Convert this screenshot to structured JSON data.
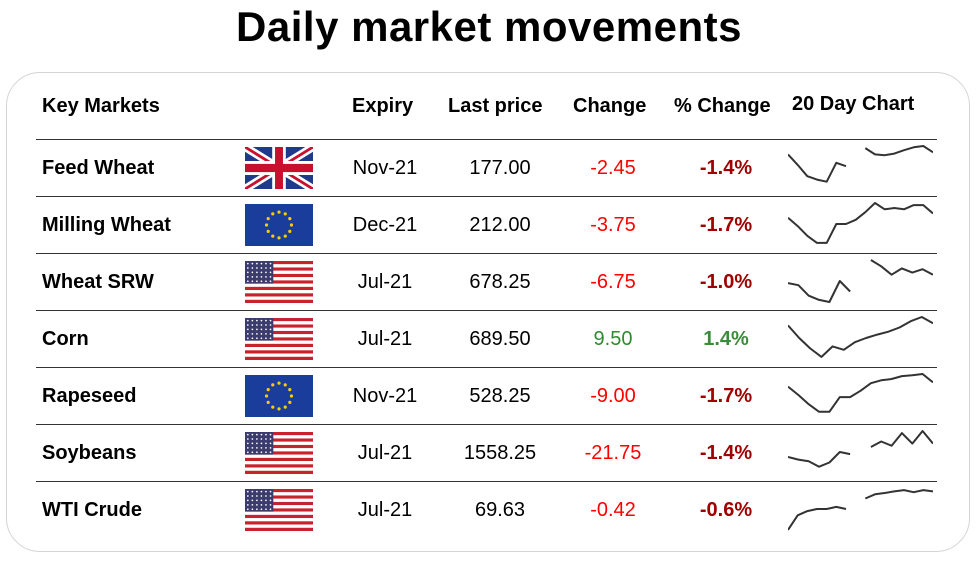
{
  "title": "Daily market movements",
  "headers": {
    "market": "Key Markets",
    "expiry": "Expiry",
    "last_price": "Last price",
    "change": "Change",
    "pct_change": "% Change",
    "chart": "20 Day Chart"
  },
  "colors": {
    "negative_change": "#ff0000",
    "positive_change": "#2e8b2e",
    "negative_pct": "#a00000",
    "positive_pct": "#3c8a3c"
  },
  "rows": [
    {
      "market": "Feed Wheat",
      "flag": "uk-flag-icon",
      "expiry": "Nov-21",
      "last_price": "177.00",
      "change": "-2.45",
      "pct_change": "-1.4%",
      "direction": "down",
      "chart": [
        0.2,
        0.45,
        0.72,
        0.8,
        0.85,
        0.4,
        0.48,
        null,
        0.05,
        0.2,
        0.22,
        0.18,
        0.1,
        0.03,
        0.0,
        0.15
      ]
    },
    {
      "market": "Milling Wheat",
      "flag": "eu-flag-icon",
      "expiry": "Dec-21",
      "last_price": "212.00",
      "change": "-3.75",
      "pct_change": "-1.7%",
      "direction": "down",
      "chart": [
        0.35,
        0.55,
        0.78,
        0.95,
        0.95,
        0.5,
        0.5,
        0.4,
        0.22,
        0.0,
        0.15,
        0.12,
        0.15,
        0.05,
        0.05,
        0.25
      ]
    },
    {
      "market": "Wheat SRW",
      "flag": "us-flag-icon",
      "expiry": "Jul-21",
      "last_price": "678.25",
      "change": "-6.75",
      "pct_change": "-1.0%",
      "direction": "down",
      "chart": [
        0.55,
        0.6,
        0.85,
        0.95,
        1.0,
        0.5,
        0.75,
        null,
        0.0,
        0.15,
        0.35,
        0.2,
        0.3,
        0.22,
        0.35
      ]
    },
    {
      "market": "Corn",
      "flag": "us-flag-icon",
      "expiry": "Jul-21",
      "last_price": "689.50",
      "change": "9.50",
      "pct_change": "1.4%",
      "direction": "up",
      "chart": [
        0.2,
        0.5,
        0.75,
        0.95,
        0.7,
        0.78,
        0.6,
        0.5,
        0.42,
        0.35,
        0.25,
        0.1,
        0.0,
        0.15
      ]
    },
    {
      "market": "Rapeseed",
      "flag": "eu-flag-icon",
      "expiry": "Nov-21",
      "last_price": "528.25",
      "change": "-9.00",
      "pct_change": "-1.7%",
      "direction": "down",
      "chart": [
        0.3,
        0.5,
        0.72,
        0.9,
        0.9,
        0.55,
        0.55,
        0.4,
        0.22,
        0.15,
        0.12,
        0.05,
        0.03,
        0.0,
        0.2
      ]
    },
    {
      "market": "Soybeans",
      "flag": "us-flag-icon",
      "expiry": "Jul-21",
      "last_price": "1558.25",
      "change": "-21.75",
      "pct_change": "-1.4%",
      "direction": "down",
      "chart": [
        0.62,
        0.68,
        0.72,
        0.85,
        0.75,
        0.5,
        0.55,
        null,
        0.38,
        0.25,
        0.35,
        0.05,
        0.3,
        0.0,
        0.3
      ]
    },
    {
      "market": "WTI Crude",
      "flag": "us-flag-icon",
      "expiry": "Jul-21",
      "last_price": "69.63",
      "change": "-0.42",
      "pct_change": "-0.6%",
      "direction": "down",
      "chart": [
        1.0,
        0.65,
        0.55,
        0.5,
        0.5,
        0.45,
        0.5,
        null,
        0.25,
        0.15,
        0.12,
        0.08,
        0.05,
        0.1,
        0.05,
        0.08
      ]
    }
  ]
}
